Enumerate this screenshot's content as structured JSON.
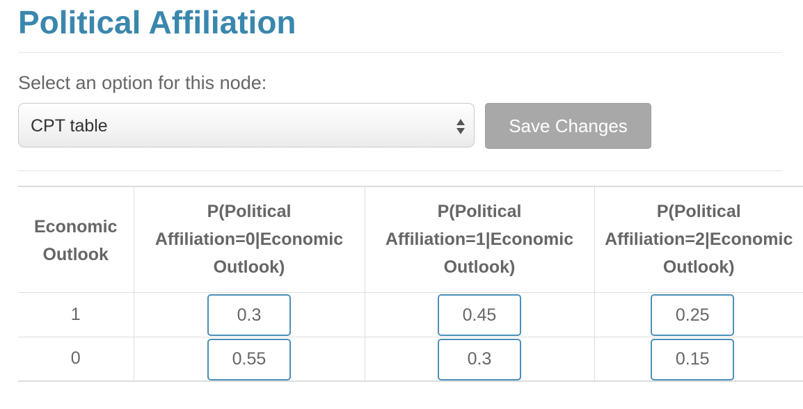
{
  "page": {
    "title": "Political Affiliation"
  },
  "node_option": {
    "label": "Select an option for this node:",
    "selected": "CPT table"
  },
  "toolbar": {
    "save_label": "Save Changes"
  },
  "cpt": {
    "headers": [
      "Economic Outlook",
      "P(Political Affiliation=0|Economic Outlook)",
      "P(Political Affiliation=1|Economic Outlook)",
      "P(Political Affiliation=2|Economic Outlook)"
    ],
    "rows": [
      {
        "parent_value": "1",
        "values": [
          "0.3",
          "0.45",
          "0.25"
        ]
      },
      {
        "parent_value": "0",
        "values": [
          "0.55",
          "0.3",
          "0.15"
        ]
      }
    ]
  },
  "colors": {
    "title": "#3a87ad",
    "input_border": "#4a8fb8",
    "button_disabled": "#a8a8a8"
  }
}
